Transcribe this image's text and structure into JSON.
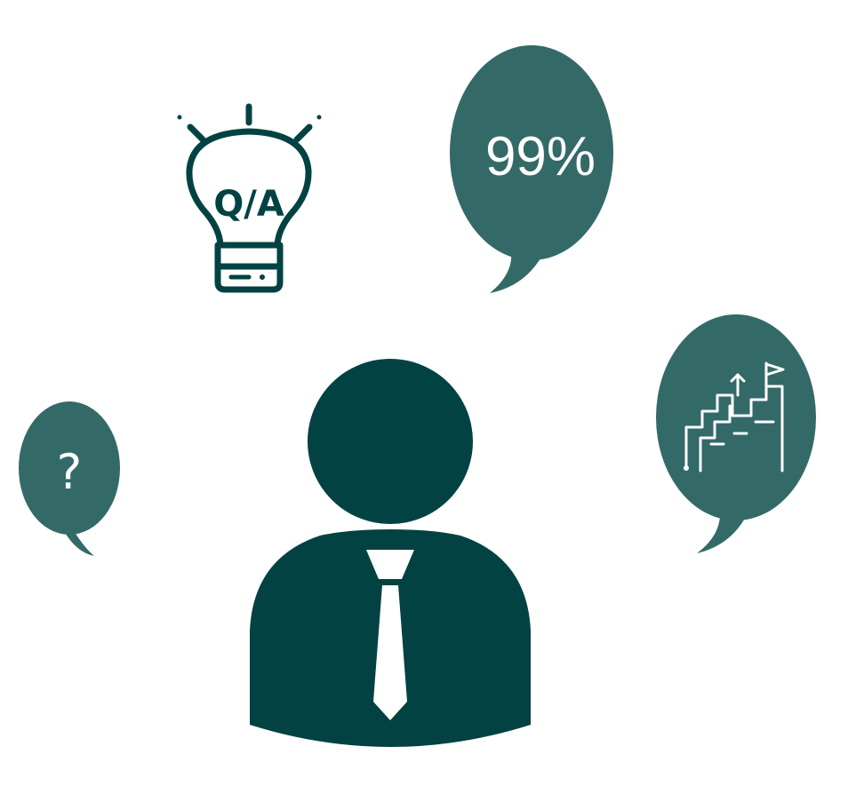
{
  "colors": {
    "background": "#ffffff",
    "bubble": "#336a68",
    "figure": "#034243",
    "icon_stroke": "#034243",
    "icon_on_bubble": "#ffffff"
  },
  "lightbulb": {
    "icon": "lightbulb-icon",
    "label": "Q/A"
  },
  "bubbles": {
    "percent": {
      "icon": "speech-bubble-icon",
      "label": "99%"
    },
    "question": {
      "icon": "question-mark-icon",
      "label": "?"
    },
    "growth": {
      "icon": "stairs-with-flag-icon"
    }
  },
  "person": {
    "icon": "businessman-icon",
    "tie": "necktie-icon"
  }
}
